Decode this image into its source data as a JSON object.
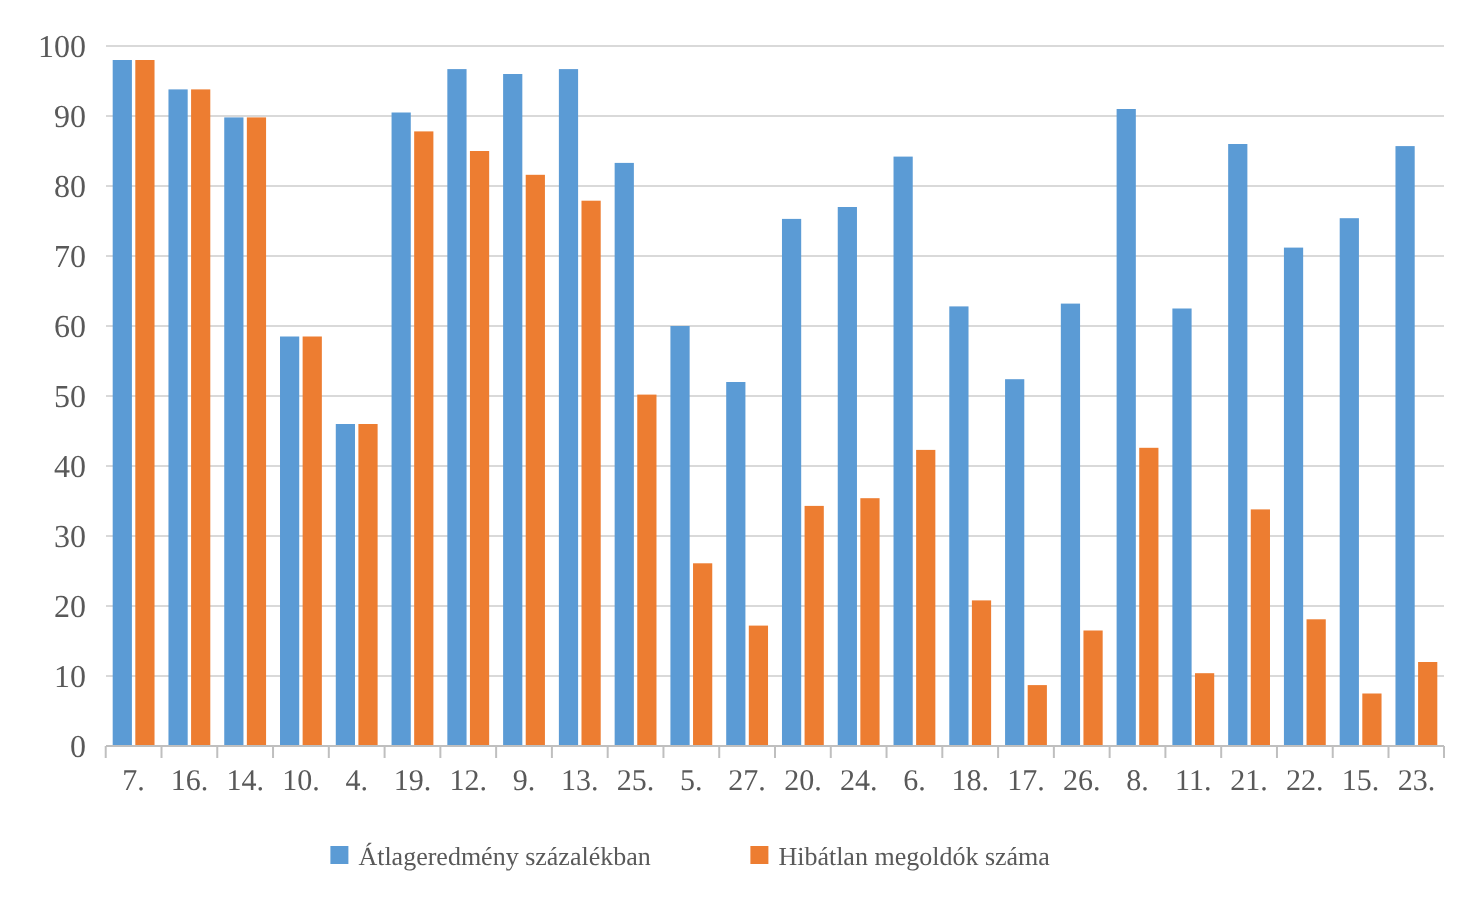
{
  "chart_data": {
    "type": "bar",
    "categories": [
      "7.",
      "16.",
      "14.",
      "10.",
      "4.",
      "19.",
      "12.",
      "9.",
      "13.",
      "25.",
      "5.",
      "27.",
      "20.",
      "24.",
      "6.",
      "18.",
      "17.",
      "26.",
      "8.",
      "11.",
      "21.",
      "22.",
      "15.",
      "23."
    ],
    "series": [
      {
        "name": "Átlageredmény százalékban",
        "color": "#5b9bd5",
        "values": [
          98,
          93.8,
          89.8,
          58.5,
          46,
          90.5,
          96.7,
          96,
          96.7,
          83.3,
          60,
          52,
          75.3,
          77,
          84.2,
          62.8,
          52.4,
          63.2,
          91,
          62.5,
          86,
          71.2,
          75.4,
          85.7
        ]
      },
      {
        "name": "Hibátlan megoldók száma",
        "color": "#ed7d31",
        "values": [
          98,
          93.8,
          89.8,
          58.5,
          46,
          87.8,
          85,
          81.6,
          77.9,
          50.2,
          26.1,
          17.2,
          34.3,
          35.4,
          42.3,
          20.8,
          8.7,
          16.5,
          42.6,
          10.4,
          33.8,
          18.1,
          7.5,
          12
        ]
      }
    ],
    "ylim": [
      0,
      100
    ],
    "yticks": [
      0,
      10,
      20,
      30,
      40,
      50,
      60,
      70,
      80,
      90,
      100
    ],
    "grid": "y",
    "legend": "bottom"
  }
}
